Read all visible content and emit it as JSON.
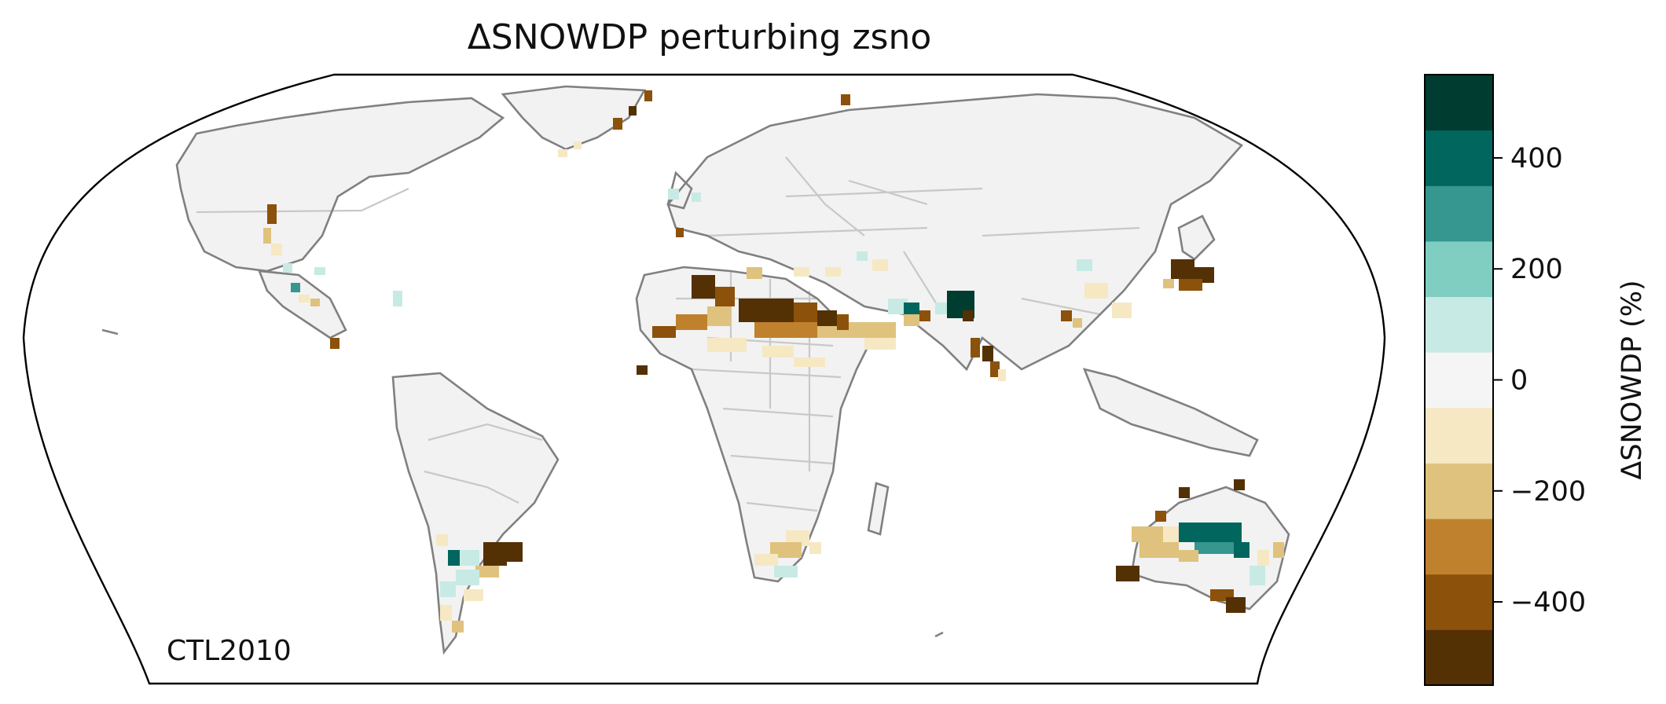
{
  "title": "ΔSNOWDP perturbing zsno",
  "corner_label": "CTL2010",
  "colorbar": {
    "label": "ΔSNOWDP (%)",
    "ticks": [
      {
        "value": 400,
        "text": "400"
      },
      {
        "value": 200,
        "text": "200"
      },
      {
        "value": 0,
        "text": "0"
      },
      {
        "value": -200,
        "text": "−200"
      },
      {
        "value": -400,
        "text": "−400"
      }
    ],
    "range": [
      -550,
      550
    ],
    "bins": [
      {
        "from": -550,
        "to": -450,
        "color": "#543005"
      },
      {
        "from": -450,
        "to": -350,
        "color": "#8c510a"
      },
      {
        "from": -350,
        "to": -250,
        "color": "#bf812d"
      },
      {
        "from": -250,
        "to": -150,
        "color": "#dfc27d"
      },
      {
        "from": -150,
        "to": -50,
        "color": "#f6e8c3"
      },
      {
        "from": -50,
        "to": 50,
        "color": "#f5f5f5"
      },
      {
        "from": 50,
        "to": 150,
        "color": "#c7eae5"
      },
      {
        "from": 150,
        "to": 250,
        "color": "#80cdc1"
      },
      {
        "from": 250,
        "to": 350,
        "color": "#35978f"
      },
      {
        "from": 350,
        "to": 450,
        "color": "#01665e"
      },
      {
        "from": 450,
        "to": 550,
        "color": "#003c30"
      }
    ]
  },
  "colors": {
    "coastline": "#808080",
    "borders": "#c8c8c8",
    "land_fill": "#f2f2f2",
    "frame": "#000000"
  }
}
